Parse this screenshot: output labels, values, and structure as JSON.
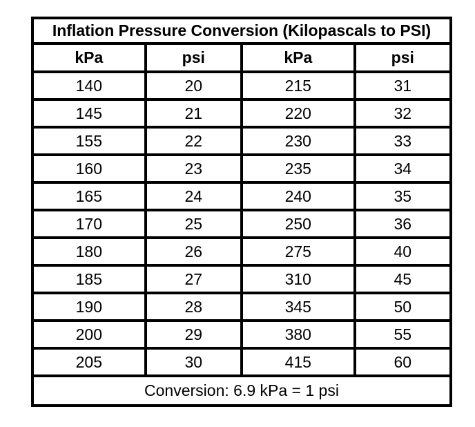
{
  "table": {
    "title": "Inflation Pressure Conversion (Kilopascals to PSI)",
    "headers": [
      "kPa",
      "psi",
      "kPa",
      "psi"
    ],
    "rows": [
      [
        "140",
        "20",
        "215",
        "31"
      ],
      [
        "145",
        "21",
        "220",
        "32"
      ],
      [
        "155",
        "22",
        "230",
        "33"
      ],
      [
        "160",
        "23",
        "235",
        "34"
      ],
      [
        "165",
        "24",
        "240",
        "35"
      ],
      [
        "170",
        "25",
        "250",
        "36"
      ],
      [
        "180",
        "26",
        "275",
        "40"
      ],
      [
        "185",
        "27",
        "310",
        "45"
      ],
      [
        "190",
        "28",
        "345",
        "50"
      ],
      [
        "200",
        "29",
        "380",
        "55"
      ],
      [
        "205",
        "30",
        "415",
        "60"
      ]
    ],
    "footer": "Conversion: 6.9 kPa = 1 psi",
    "border_color": "#000000",
    "text_color": "#000000",
    "background_color": "#ffffff"
  }
}
